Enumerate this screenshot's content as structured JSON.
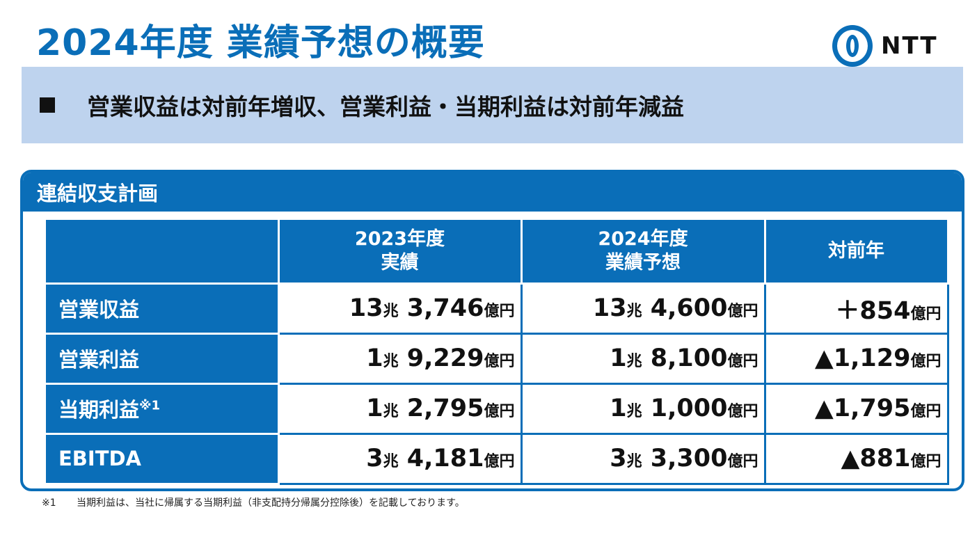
{
  "title": "2024年度 業績予想の概要",
  "logo": {
    "text": "NTT",
    "color": "#0a6eb8"
  },
  "banner": {
    "bullet": "■",
    "text": "営業収益は対前年増収、営業利益・当期利益は対前年減益"
  },
  "panel": {
    "title": "連結収支計画",
    "columns": [
      {
        "line1": "2023年度",
        "line2": "実績"
      },
      {
        "line1": "2024年度",
        "line2": "業績予想"
      },
      {
        "line1": "対前年",
        "line2": ""
      }
    ],
    "rows": [
      {
        "label": "営業収益",
        "note": "",
        "fy2023": {
          "cho": "13",
          "cho_unit": "兆",
          "oku": " 3,746",
          "oku_unit": "億円"
        },
        "fy2024": {
          "cho": "13",
          "cho_unit": "兆",
          "oku": " 4,600",
          "oku_unit": "億円"
        },
        "yoy": {
          "value": "＋854",
          "unit": "億円"
        }
      },
      {
        "label": "営業利益",
        "note": "",
        "fy2023": {
          "cho": "1",
          "cho_unit": "兆",
          "oku": " 9,229",
          "oku_unit": "億円"
        },
        "fy2024": {
          "cho": "1",
          "cho_unit": "兆",
          "oku": " 8,100",
          "oku_unit": "億円"
        },
        "yoy": {
          "value": "▲1,129",
          "unit": "億円"
        }
      },
      {
        "label": "当期利益",
        "note": "※1",
        "fy2023": {
          "cho": "1",
          "cho_unit": "兆",
          "oku": " 2,795",
          "oku_unit": "億円"
        },
        "fy2024": {
          "cho": "1",
          "cho_unit": "兆",
          "oku": " 1,000",
          "oku_unit": "億円"
        },
        "yoy": {
          "value": "▲1,795",
          "unit": "億円"
        }
      },
      {
        "label": "EBITDA",
        "note": "",
        "fy2023": {
          "cho": "3",
          "cho_unit": "兆",
          "oku": " 4,181",
          "oku_unit": "億円"
        },
        "fy2024": {
          "cho": "3",
          "cho_unit": "兆",
          "oku": " 3,300",
          "oku_unit": "億円"
        },
        "yoy": {
          "value": "▲881",
          "unit": "億円"
        }
      }
    ]
  },
  "footnote": {
    "mark": "※1",
    "text": "当期利益は、当社に帰属する当期利益（非支配持分帰属分控除後）を記載しております。"
  },
  "colors": {
    "brand_blue": "#0a6eb8",
    "banner_bg": "#bed3ee"
  }
}
